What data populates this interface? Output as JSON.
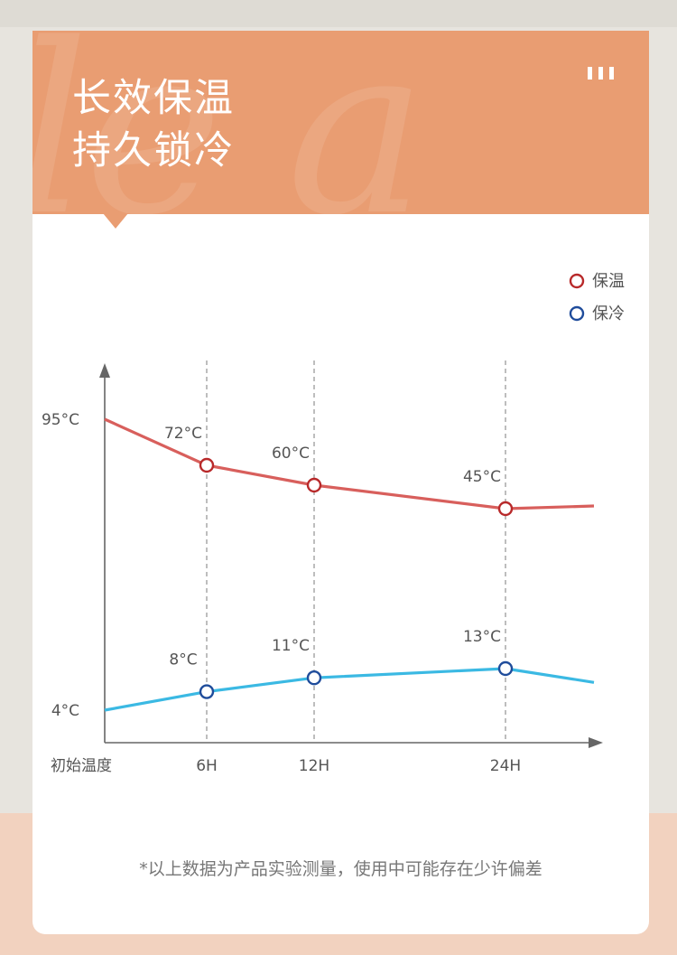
{
  "banner": {
    "title_line1": "长效保温",
    "title_line2": "持久锁冷"
  },
  "colors": {
    "banner_bg": "#e99d72",
    "warm_line": "#d85f5c",
    "warm_marker": "#b8292a",
    "cold_line": "#3bb9e3",
    "cold_marker": "#1f4c9b",
    "axis": "#666666"
  },
  "chart_data": {
    "type": "line",
    "x": [
      "初始温度",
      "6H",
      "12H",
      "24H"
    ],
    "legend_position": "top-right",
    "series": [
      {
        "name": "保温",
        "values": [
          95,
          72,
          60,
          45
        ],
        "labels": [
          "95°C",
          "72°C",
          "60°C",
          "45°C"
        ]
      },
      {
        "name": "保冷",
        "values": [
          4,
          8,
          11,
          13
        ],
        "labels": [
          "4°C",
          "8°C",
          "11°C",
          "13°C"
        ]
      }
    ]
  },
  "footnote": "*以上数据为产品实验测量，使用中可能存在少许偏差"
}
